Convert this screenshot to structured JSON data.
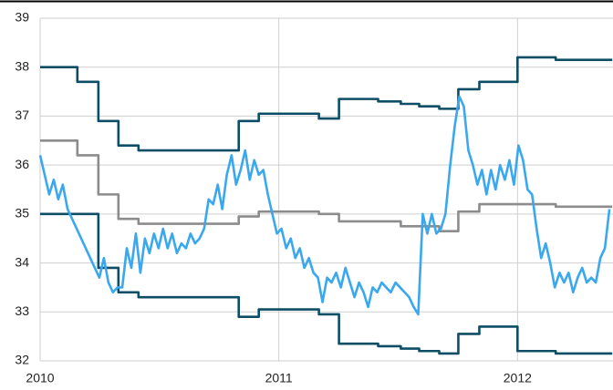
{
  "chart_data": {
    "type": "line",
    "xlim": [
      2010,
      2012.4
    ],
    "xticks": [
      2010,
      2011,
      2012
    ],
    "ylim": [
      32,
      39
    ],
    "yticks": [
      32,
      33,
      34,
      35,
      36,
      37,
      38,
      39
    ],
    "grid": true,
    "series": [
      {
        "color": "#0e4d66",
        "x": [
          2010,
          2010.156,
          2010.156,
          2010.244,
          2010.244,
          2010.328,
          2010.328,
          2010.412,
          2010.412,
          2010.832,
          2010.832,
          2010.916,
          2010.916,
          2011.168,
          2011.168,
          2011.252,
          2011.252,
          2011.416,
          2011.416,
          2011.511,
          2011.511,
          2011.588,
          2011.588,
          2011.672,
          2011.672,
          2011.752,
          2011.752,
          2011.84,
          2011.84,
          2012,
          2012,
          2012.16,
          2012.16,
          2012.397
        ],
        "values": [
          38,
          38,
          37.7,
          37.7,
          36.9,
          36.9,
          36.4,
          36.4,
          36.3,
          36.3,
          36.9,
          36.9,
          37.05,
          37.05,
          36.95,
          36.95,
          37.35,
          37.35,
          37.3,
          37.3,
          37.25,
          37.25,
          37.2,
          37.2,
          37.15,
          37.15,
          37.55,
          37.55,
          37.7,
          37.7,
          38.2,
          38.2,
          38.15,
          38.15
        ]
      },
      {
        "color": "#0e4d66",
        "x": [
          2010,
          2010.156,
          2010.156,
          2010.244,
          2010.244,
          2010.328,
          2010.328,
          2010.412,
          2010.412,
          2010.832,
          2010.832,
          2010.916,
          2010.916,
          2011.168,
          2011.168,
          2011.252,
          2011.252,
          2011.416,
          2011.416,
          2011.511,
          2011.511,
          2011.588,
          2011.588,
          2011.672,
          2011.672,
          2011.752,
          2011.752,
          2011.84,
          2011.84,
          2012,
          2012,
          2012.16,
          2012.16,
          2012.397
        ],
        "values": [
          35,
          35,
          35,
          35,
          33.9,
          33.9,
          33.4,
          33.4,
          33.3,
          33.3,
          32.9,
          32.9,
          33.05,
          33.05,
          32.95,
          32.95,
          32.35,
          32.35,
          32.3,
          32.3,
          32.25,
          32.25,
          32.2,
          32.2,
          32.15,
          32.15,
          32.55,
          32.55,
          32.7,
          32.7,
          32.2,
          32.2,
          32.15,
          32.15
        ]
      },
      {
        "color": "#8c8c8c",
        "x": [
          2010,
          2010.156,
          2010.156,
          2010.244,
          2010.244,
          2010.328,
          2010.328,
          2010.412,
          2010.412,
          2010.832,
          2010.832,
          2010.916,
          2010.916,
          2011.168,
          2011.168,
          2011.252,
          2011.252,
          2011.416,
          2011.416,
          2011.511,
          2011.511,
          2011.588,
          2011.588,
          2011.672,
          2011.672,
          2011.752,
          2011.752,
          2011.84,
          2011.84,
          2012,
          2012,
          2012.16,
          2012.16,
          2012.397
        ],
        "values": [
          36.5,
          36.5,
          36.2,
          36.2,
          35.4,
          35.4,
          34.9,
          34.9,
          34.8,
          34.8,
          34.95,
          34.95,
          35.05,
          35.05,
          35,
          35,
          34.85,
          34.85,
          34.85,
          34.85,
          34.75,
          34.75,
          34.75,
          34.75,
          34.65,
          34.65,
          35.05,
          35.05,
          35.2,
          35.2,
          35.2,
          35.2,
          35.15,
          35.15
        ]
      },
      {
        "color": "#3aa8ee",
        "x": [
          2010,
          2010.019,
          2010.038,
          2010.057,
          2010.076,
          2010.095,
          2010.115,
          2010.134,
          2010.153,
          2010.172,
          2010.191,
          2010.21,
          2010.229,
          2010.248,
          2010.267,
          2010.286,
          2010.305,
          2010.324,
          2010.344,
          2010.363,
          2010.382,
          2010.401,
          2010.42,
          2010.439,
          2010.458,
          2010.477,
          2010.496,
          2010.515,
          2010.534,
          2010.553,
          2010.573,
          2010.592,
          2010.611,
          2010.63,
          2010.649,
          2010.668,
          2010.687,
          2010.706,
          2010.725,
          2010.744,
          2010.763,
          2010.782,
          2010.802,
          2010.821,
          2010.84,
          2010.859,
          2010.878,
          2010.897,
          2010.916,
          2010.935,
          2010.954,
          2010.973,
          2010.992,
          2011.011,
          2011.031,
          2011.05,
          2011.069,
          2011.088,
          2011.107,
          2011.126,
          2011.145,
          2011.164,
          2011.183,
          2011.202,
          2011.221,
          2011.24,
          2011.26,
          2011.279,
          2011.298,
          2011.317,
          2011.336,
          2011.355,
          2011.374,
          2011.393,
          2011.412,
          2011.431,
          2011.45,
          2011.469,
          2011.489,
          2011.508,
          2011.527,
          2011.546,
          2011.565,
          2011.584,
          2011.603,
          2011.622,
          2011.641,
          2011.66,
          2011.679,
          2011.698,
          2011.718,
          2011.737,
          2011.756,
          2011.775,
          2011.794,
          2011.813,
          2011.832,
          2011.851,
          2011.87,
          2011.889,
          2011.908,
          2011.927,
          2011.947,
          2011.966,
          2011.985,
          2012.004,
          2012.023,
          2012.042,
          2012.061,
          2012.08,
          2012.099,
          2012.118,
          2012.137,
          2012.156,
          2012.176,
          2012.195,
          2012.214,
          2012.233,
          2012.252,
          2012.271,
          2012.29,
          2012.309,
          2012.328,
          2012.347,
          2012.366,
          2012.385
        ],
        "values": [
          36.2,
          35.8,
          35.4,
          35.7,
          35.3,
          35.6,
          35.1,
          34.9,
          34.7,
          34.5,
          34.3,
          34.1,
          33.9,
          33.7,
          34.1,
          33.6,
          33.4,
          33.5,
          33.5,
          34.3,
          33.9,
          34.6,
          33.8,
          34.5,
          34.2,
          34.6,
          34.3,
          34.7,
          34.3,
          34.6,
          34.2,
          34.4,
          34.3,
          34.6,
          34.4,
          34.5,
          34.7,
          35.3,
          35.2,
          35.6,
          35.1,
          35.8,
          36.2,
          35.6,
          35.9,
          36.3,
          35.7,
          36.1,
          35.8,
          35.9,
          35.4,
          35.0,
          34.6,
          34.7,
          34.3,
          34.5,
          34.1,
          34.3,
          33.9,
          34.1,
          33.8,
          33.7,
          33.2,
          33.7,
          33.6,
          33.8,
          33.5,
          33.9,
          33.6,
          33.3,
          33.6,
          33.4,
          33.1,
          33.5,
          33.4,
          33.6,
          33.5,
          33.4,
          33.6,
          33.5,
          33.4,
          33.3,
          33.1,
          32.95,
          35.0,
          34.6,
          35.0,
          34.6,
          34.7,
          35.0,
          36.0,
          36.8,
          37.4,
          37.2,
          36.3,
          36.0,
          35.6,
          35.9,
          35.4,
          35.9,
          35.5,
          36.0,
          35.7,
          36.1,
          35.6,
          36.4,
          36.1,
          35.5,
          35.4,
          34.7,
          34.1,
          34.4,
          34.0,
          33.5,
          33.8,
          33.6,
          33.8,
          33.4,
          33.7,
          33.9,
          33.6,
          33.7,
          33.6,
          34.1,
          34.3,
          35.1
        ]
      }
    ]
  }
}
